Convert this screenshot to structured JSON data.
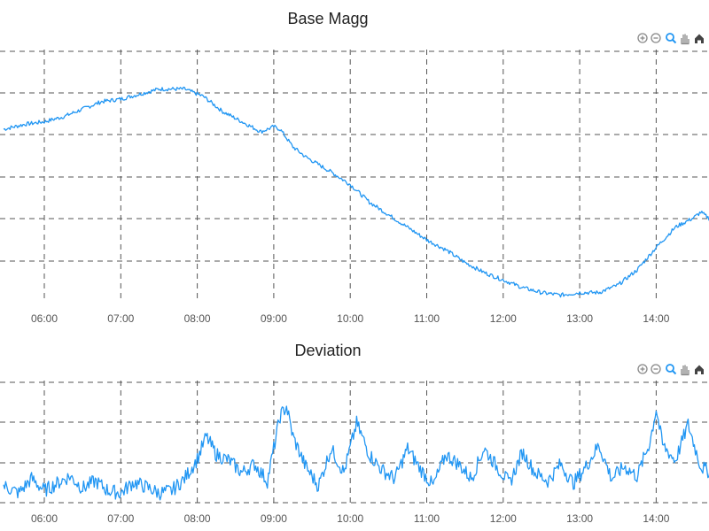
{
  "colors": {
    "series": "#2196f3",
    "grid": "#555555",
    "tool": "#888888",
    "home": "#444444"
  },
  "toolbar_icons": [
    "zoom-in-icon",
    "zoom-out-icon",
    "selection-zoom-icon",
    "pan-hand-icon",
    "reset-home-icon"
  ],
  "chart_data": [
    {
      "type": "line",
      "title": "Base Magg",
      "x_ticks": [
        "06:00",
        "07:00",
        "08:00",
        "09:00",
        "10:00",
        "11:00",
        "12:00",
        "13:00",
        "14:00"
      ],
      "x_range": [
        "05:28",
        "14:43"
      ],
      "ylim": [
        0,
        100
      ],
      "grid": true,
      "series": [
        {
          "points": [
            [
              "05:28",
              69
            ],
            [
              "05:45",
              71
            ],
            [
              "06:00",
              72
            ],
            [
              "06:15",
              74
            ],
            [
              "06:30",
              77
            ],
            [
              "06:45",
              80
            ],
            [
              "07:00",
              81
            ],
            [
              "07:15",
              83
            ],
            [
              "07:30",
              85
            ],
            [
              "07:50",
              85
            ],
            [
              "08:05",
              82
            ],
            [
              "08:20",
              76
            ],
            [
              "08:35",
              72
            ],
            [
              "08:50",
              68
            ],
            [
              "09:00",
              70
            ],
            [
              "09:05",
              69
            ],
            [
              "09:15",
              62
            ],
            [
              "09:25",
              58
            ],
            [
              "09:35",
              55
            ],
            [
              "09:45",
              52
            ],
            [
              "10:00",
              47
            ],
            [
              "10:15",
              40
            ],
            [
              "10:30",
              35
            ],
            [
              "10:45",
              30
            ],
            [
              "11:00",
              25
            ],
            [
              "11:15",
              21
            ],
            [
              "11:30",
              16
            ],
            [
              "11:45",
              12
            ],
            [
              "12:00",
              9
            ],
            [
              "12:15",
              6
            ],
            [
              "12:30",
              4
            ],
            [
              "12:45",
              3
            ],
            [
              "13:00",
              4
            ],
            [
              "13:15",
              4
            ],
            [
              "13:30",
              7
            ],
            [
              "13:45",
              13
            ],
            [
              "14:00",
              22
            ],
            [
              "14:15",
              30
            ],
            [
              "14:30",
              34
            ],
            [
              "14:35",
              36
            ],
            [
              "14:43",
              33
            ]
          ]
        }
      ]
    },
    {
      "type": "line",
      "title": "Deviation",
      "x_ticks": [
        "06:00",
        "07:00",
        "08:00",
        "09:00",
        "10:00",
        "11:00",
        "12:00",
        "13:00",
        "14:00"
      ],
      "x_range": [
        "05:28",
        "14:43"
      ],
      "ylim": [
        0,
        100
      ],
      "grid": true,
      "series": [
        {
          "points": [
            [
              "05:28",
              14
            ],
            [
              "05:40",
              8
            ],
            [
              "05:50",
              20
            ],
            [
              "06:00",
              10
            ],
            [
              "06:10",
              16
            ],
            [
              "06:20",
              22
            ],
            [
              "06:30",
              12
            ],
            [
              "06:40",
              18
            ],
            [
              "06:50",
              10
            ],
            [
              "07:00",
              8
            ],
            [
              "07:10",
              17
            ],
            [
              "07:20",
              13
            ],
            [
              "07:30",
              8
            ],
            [
              "07:40",
              10
            ],
            [
              "07:50",
              20
            ],
            [
              "08:00",
              36
            ],
            [
              "08:07",
              55
            ],
            [
              "08:15",
              40
            ],
            [
              "08:25",
              35
            ],
            [
              "08:35",
              25
            ],
            [
              "08:45",
              32
            ],
            [
              "08:55",
              18
            ],
            [
              "09:05",
              72
            ],
            [
              "09:10",
              80
            ],
            [
              "09:15",
              55
            ],
            [
              "09:25",
              30
            ],
            [
              "09:35",
              14
            ],
            [
              "09:45",
              45
            ],
            [
              "09:55",
              25
            ],
            [
              "10:05",
              66
            ],
            [
              "10:15",
              40
            ],
            [
              "10:25",
              27
            ],
            [
              "10:35",
              20
            ],
            [
              "10:45",
              45
            ],
            [
              "10:55",
              28
            ],
            [
              "11:05",
              14
            ],
            [
              "11:15",
              40
            ],
            [
              "11:25",
              32
            ],
            [
              "11:35",
              20
            ],
            [
              "11:45",
              45
            ],
            [
              "11:55",
              30
            ],
            [
              "12:05",
              16
            ],
            [
              "12:15",
              42
            ],
            [
              "12:25",
              25
            ],
            [
              "12:35",
              18
            ],
            [
              "12:45",
              32
            ],
            [
              "12:55",
              16
            ],
            [
              "13:05",
              30
            ],
            [
              "13:15",
              48
            ],
            [
              "13:25",
              20
            ],
            [
              "13:35",
              30
            ],
            [
              "13:45",
              22
            ],
            [
              "13:55",
              50
            ],
            [
              "14:00",
              78
            ],
            [
              "14:05",
              48
            ],
            [
              "14:15",
              35
            ],
            [
              "14:25",
              65
            ],
            [
              "14:35",
              30
            ],
            [
              "14:43",
              25
            ]
          ]
        }
      ]
    }
  ]
}
